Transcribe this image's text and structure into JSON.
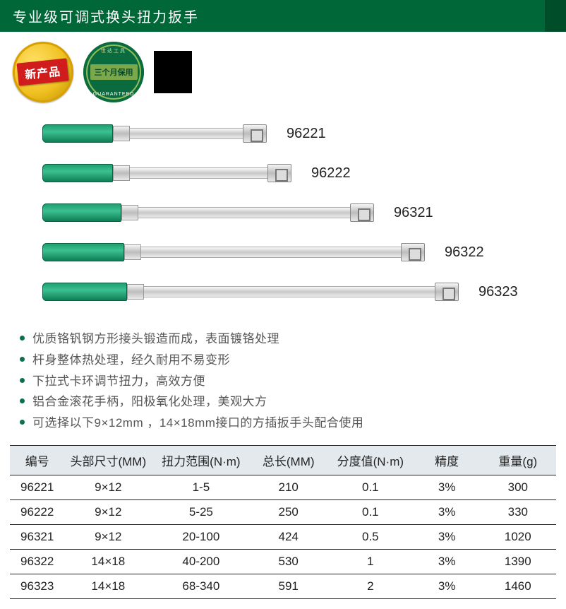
{
  "title": "专业级可调式换头扭力扳手",
  "badges": {
    "new_label": "新产品",
    "warranty_main": "三个月保用",
    "warranty_ring_top": "世达工具",
    "warranty_ring_bottom": "GUARANTEED"
  },
  "wrenches": [
    {
      "model": "96221",
      "handle_w": 100,
      "shaft_w": 160
    },
    {
      "model": "96222",
      "handle_w": 100,
      "shaft_w": 195
    },
    {
      "model": "96321",
      "handle_w": 112,
      "shaft_w": 300
    },
    {
      "model": "96322",
      "handle_w": 116,
      "shaft_w": 368
    },
    {
      "model": "96323",
      "handle_w": 120,
      "shaft_w": 412
    }
  ],
  "features": [
    "优质铬钒钢方形接头锻造而成，表面镀铬处理",
    "杆身整体热处理，经久耐用不易变形",
    "下拉式卡环调节扭力，高效方便",
    "铝合金滚花手柄，阳极氧化处理，美观大方",
    "可选择以下9×12mm ，14×18mm接口的方插扳手头配合使用"
  ],
  "table": {
    "headers": [
      "编号",
      "头部尺寸(MM)",
      "扭力范围(N·m)",
      "总长(MM)",
      "分度值(N·m)",
      "精度",
      "重量(g)"
    ],
    "rows": [
      [
        "96221",
        "9×12",
        "1-5",
        "210",
        "0.1",
        "3%",
        "300"
      ],
      [
        "96222",
        "9×12",
        "5-25",
        "250",
        "0.1",
        "3%",
        "330"
      ],
      [
        "96321",
        "9×12",
        "20-100",
        "424",
        "0.5",
        "3%",
        "1020"
      ],
      [
        "96322",
        "14×18",
        "40-200",
        "530",
        "1",
        "3%",
        "1390"
      ],
      [
        "96323",
        "14×18",
        "68-340",
        "591",
        "2",
        "3%",
        "1460"
      ]
    ]
  },
  "colors": {
    "title_bg": "#006838",
    "handle": "#1a9b6e",
    "bullet": "#0a7050",
    "header_bg": "#e4e9ed"
  }
}
